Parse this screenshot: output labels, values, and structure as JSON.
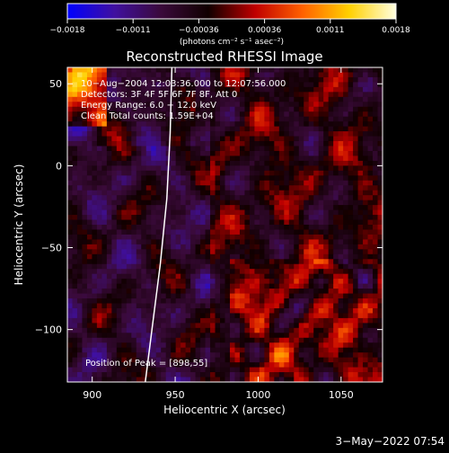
{
  "chart_data": {
    "type": "heatmap",
    "title": "Reconstructed RHESSI Image",
    "xlabel": "Heliocentric X (arcsec)",
    "ylabel": "Heliocentric Y (arcsec)",
    "xlim": [
      885,
      1075
    ],
    "ylim": [
      -132,
      60
    ],
    "x_ticks": [
      900,
      950,
      1000,
      1050
    ],
    "y_ticks": [
      50,
      0,
      -50,
      -100
    ],
    "x_tick_labels": [
      "900",
      "950",
      "1000",
      "1050"
    ],
    "y_tick_labels": [
      "50",
      "0",
      "−50",
      "−100"
    ],
    "colorbar": {
      "range": [
        -0.0018,
        0.0018
      ],
      "tick_labels": [
        "−0.0018",
        "−0.0011",
        "−0.00036",
        "0.00036",
        "0.0011",
        "0.0018"
      ],
      "unit_label": "(photons cm⁻² s⁻¹ asec⁻²)",
      "colors": [
        "#0000ff",
        "#4010a0",
        "#3a0a3a",
        "#100000",
        "#c00000",
        "#ff6000",
        "#ffd000",
        "#ffffe0"
      ]
    },
    "annotations": [
      "10−Aug−2004 12:03:36.000 to 12:07:56.000",
      "Detectors: 3F 4F 5F 6F 7F 8F, Att 0",
      "Energy Range: 6.0 − 12.0 keV",
      "Clean      Total counts: 1.59E+04"
    ],
    "peak_label": "Position of Peak = [898,55]",
    "peak": [
      898,
      55
    ],
    "limb_curve": [
      [
        948,
        60
      ],
      [
        947,
        20
      ],
      [
        945,
        -20
      ],
      [
        941,
        -60
      ],
      [
        936,
        -100
      ],
      [
        932,
        -132
      ]
    ],
    "grid": false
  },
  "footer_timestamp": "3−May−2022 07:54",
  "colors": {
    "background": "#000000",
    "foreground": "#ffffff"
  }
}
